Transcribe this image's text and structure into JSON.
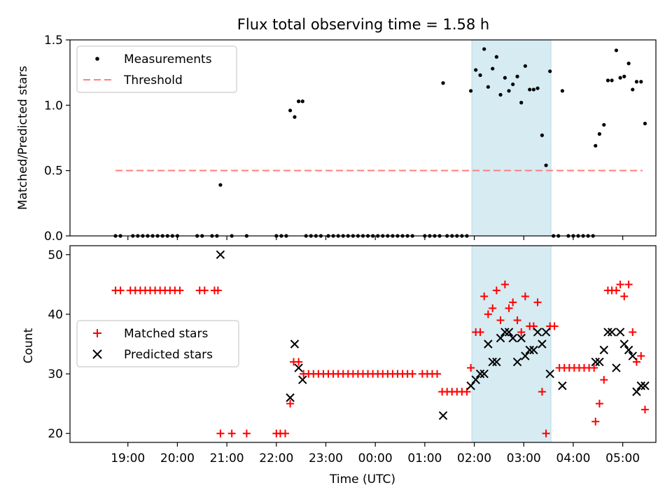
{
  "chart_data": [
    {
      "type": "scatter",
      "title": "Flux total observing time = 1.58 h",
      "xlabel": "",
      "ylabel": "Matched/Predicted stars",
      "ylim": [
        0,
        1.5
      ],
      "yticks": [
        "0.0",
        "0.5",
        "1.0",
        "1.5"
      ],
      "xlim": [
        17.83,
        29.67
      ],
      "shaded_region": [
        25.95,
        27.55
      ],
      "legend": {
        "placement": "top-left",
        "entries": [
          "Measurements",
          "Threshold"
        ]
      },
      "threshold": {
        "name": "Threshold",
        "y": 0.5,
        "x": [
          18.75,
          29.4
        ],
        "color": "#ff7f7f"
      },
      "series": [
        {
          "name": "Measurements",
          "color": "#000000",
          "points": [
            [
              18.75,
              0
            ],
            [
              18.85,
              0
            ],
            [
              19.1,
              0
            ],
            [
              19.2,
              0
            ],
            [
              19.3,
              0
            ],
            [
              19.4,
              0
            ],
            [
              19.5,
              0
            ],
            [
              19.6,
              0
            ],
            [
              19.7,
              0
            ],
            [
              19.8,
              0
            ],
            [
              19.9,
              0
            ],
            [
              20.0,
              0
            ],
            [
              20.4,
              0
            ],
            [
              20.5,
              0
            ],
            [
              20.7,
              0
            ],
            [
              20.8,
              0
            ],
            [
              20.87,
              0.39
            ],
            [
              21.1,
              0
            ],
            [
              21.4,
              0
            ],
            [
              22.0,
              0
            ],
            [
              22.1,
              0
            ],
            [
              22.2,
              0
            ],
            [
              22.28,
              0.96
            ],
            [
              22.37,
              0.91
            ],
            [
              22.45,
              1.03
            ],
            [
              22.53,
              1.03
            ],
            [
              22.6,
              0
            ],
            [
              22.7,
              0
            ],
            [
              22.8,
              0
            ],
            [
              22.9,
              0
            ],
            [
              23.05,
              0
            ],
            [
              23.15,
              0
            ],
            [
              23.25,
              0
            ],
            [
              23.35,
              0
            ],
            [
              23.45,
              0
            ],
            [
              23.55,
              0
            ],
            [
              23.65,
              0
            ],
            [
              23.75,
              0
            ],
            [
              23.85,
              0
            ],
            [
              23.95,
              0
            ],
            [
              24.05,
              0
            ],
            [
              24.15,
              0
            ],
            [
              24.25,
              0
            ],
            [
              24.35,
              0
            ],
            [
              24.45,
              0
            ],
            [
              24.55,
              0
            ],
            [
              24.65,
              0
            ],
            [
              24.75,
              0
            ],
            [
              25.0,
              0
            ],
            [
              25.1,
              0
            ],
            [
              25.2,
              0
            ],
            [
              25.3,
              0
            ],
            [
              25.37,
              1.17
            ],
            [
              25.45,
              0
            ],
            [
              25.55,
              0
            ],
            [
              25.65,
              0
            ],
            [
              25.75,
              0
            ],
            [
              25.85,
              0
            ],
            [
              25.93,
              1.11
            ],
            [
              26.03,
              1.27
            ],
            [
              26.12,
              1.23
            ],
            [
              26.2,
              1.43
            ],
            [
              26.28,
              1.14
            ],
            [
              26.37,
              1.28
            ],
            [
              26.45,
              1.37
            ],
            [
              26.53,
              1.08
            ],
            [
              26.62,
              1.21
            ],
            [
              26.7,
              1.11
            ],
            [
              26.78,
              1.16
            ],
            [
              26.87,
              1.22
            ],
            [
              26.95,
              1.02
            ],
            [
              27.03,
              1.3
            ],
            [
              27.12,
              1.12
            ],
            [
              27.2,
              1.12
            ],
            [
              27.28,
              1.13
            ],
            [
              27.37,
              0.77
            ],
            [
              27.45,
              0.54
            ],
            [
              27.53,
              1.26
            ],
            [
              27.6,
              0
            ],
            [
              27.7,
              0
            ],
            [
              27.78,
              1.11
            ],
            [
              27.9,
              0
            ],
            [
              28.0,
              0
            ],
            [
              28.1,
              0
            ],
            [
              28.2,
              0
            ],
            [
              28.3,
              0
            ],
            [
              28.4,
              0
            ],
            [
              28.45,
              0.69
            ],
            [
              28.53,
              0.78
            ],
            [
              28.62,
              0.85
            ],
            [
              28.7,
              1.19
            ],
            [
              28.78,
              1.19
            ],
            [
              28.87,
              1.42
            ],
            [
              28.95,
              1.21
            ],
            [
              29.03,
              1.22
            ],
            [
              29.12,
              1.32
            ],
            [
              29.2,
              1.12
            ],
            [
              29.28,
              1.18
            ],
            [
              29.37,
              1.18
            ],
            [
              29.45,
              0.86
            ]
          ]
        }
      ]
    },
    {
      "type": "scatter",
      "title": "",
      "xlabel": "Time (UTC)",
      "ylabel": "Count",
      "ylim": [
        18.5,
        51.5
      ],
      "yticks": [
        "20",
        "30",
        "40",
        "50"
      ],
      "xlim": [
        17.83,
        29.67
      ],
      "xticks": [
        "19:00",
        "20:00",
        "21:00",
        "22:00",
        "23:00",
        "00:00",
        "01:00",
        "02:00",
        "03:00",
        "04:00",
        "05:00"
      ],
      "shaded_region": [
        25.95,
        27.55
      ],
      "legend": {
        "placement": "center-left",
        "entries": [
          "Matched stars",
          "Predicted stars"
        ]
      },
      "series": [
        {
          "name": "Matched stars",
          "marker": "plus",
          "color": "#ff0000",
          "points": [
            [
              18.75,
              44
            ],
            [
              18.85,
              44
            ],
            [
              19.05,
              44
            ],
            [
              19.15,
              44
            ],
            [
              19.25,
              44
            ],
            [
              19.35,
              44
            ],
            [
              19.45,
              44
            ],
            [
              19.55,
              44
            ],
            [
              19.65,
              44
            ],
            [
              19.75,
              44
            ],
            [
              19.85,
              44
            ],
            [
              19.95,
              44
            ],
            [
              20.05,
              44
            ],
            [
              20.45,
              44
            ],
            [
              20.55,
              44
            ],
            [
              20.75,
              44
            ],
            [
              20.82,
              44
            ],
            [
              20.87,
              20
            ],
            [
              21.1,
              20
            ],
            [
              21.4,
              20
            ],
            [
              22.0,
              20
            ],
            [
              22.08,
              20
            ],
            [
              22.18,
              20
            ],
            [
              22.28,
              25
            ],
            [
              22.35,
              32
            ],
            [
              22.45,
              32
            ],
            [
              22.55,
              30
            ],
            [
              22.65,
              30
            ],
            [
              22.75,
              30
            ],
            [
              22.85,
              30
            ],
            [
              22.95,
              30
            ],
            [
              23.05,
              30
            ],
            [
              23.15,
              30
            ],
            [
              23.25,
              30
            ],
            [
              23.35,
              30
            ],
            [
              23.45,
              30
            ],
            [
              23.55,
              30
            ],
            [
              23.65,
              30
            ],
            [
              23.75,
              30
            ],
            [
              23.85,
              30
            ],
            [
              23.95,
              30
            ],
            [
              24.05,
              30
            ],
            [
              24.15,
              30
            ],
            [
              24.25,
              30
            ],
            [
              24.35,
              30
            ],
            [
              24.45,
              30
            ],
            [
              24.55,
              30
            ],
            [
              24.65,
              30
            ],
            [
              24.75,
              30
            ],
            [
              24.95,
              30
            ],
            [
              25.05,
              30
            ],
            [
              25.15,
              30
            ],
            [
              25.25,
              30
            ],
            [
              25.35,
              27
            ],
            [
              25.45,
              27
            ],
            [
              25.55,
              27
            ],
            [
              25.65,
              27
            ],
            [
              25.75,
              27
            ],
            [
              25.85,
              27
            ],
            [
              25.93,
              31
            ],
            [
              26.03,
              37
            ],
            [
              26.12,
              37
            ],
            [
              26.2,
              43
            ],
            [
              26.28,
              40
            ],
            [
              26.37,
              41
            ],
            [
              26.45,
              44
            ],
            [
              26.53,
              39
            ],
            [
              26.62,
              45
            ],
            [
              26.7,
              41
            ],
            [
              26.78,
              42
            ],
            [
              26.87,
              39
            ],
            [
              26.95,
              37
            ],
            [
              27.03,
              43
            ],
            [
              27.12,
              38
            ],
            [
              27.2,
              38
            ],
            [
              27.28,
              42
            ],
            [
              27.37,
              27
            ],
            [
              27.45,
              20
            ],
            [
              27.53,
              38
            ],
            [
              27.62,
              38
            ],
            [
              27.72,
              31
            ],
            [
              27.82,
              31
            ],
            [
              27.92,
              31
            ],
            [
              28.02,
              31
            ],
            [
              28.12,
              31
            ],
            [
              28.22,
              31
            ],
            [
              28.32,
              31
            ],
            [
              28.42,
              31
            ],
            [
              28.45,
              22
            ],
            [
              28.53,
              25
            ],
            [
              28.62,
              29
            ],
            [
              28.7,
              44
            ],
            [
              28.78,
              44
            ],
            [
              28.87,
              44
            ],
            [
              28.95,
              45
            ],
            [
              29.03,
              43
            ],
            [
              29.12,
              45
            ],
            [
              29.2,
              37
            ],
            [
              29.28,
              32
            ],
            [
              29.37,
              33
            ],
            [
              29.45,
              24
            ]
          ]
        },
        {
          "name": "Predicted stars",
          "marker": "x",
          "color": "#000000",
          "points": [
            [
              20.87,
              50
            ],
            [
              22.28,
              26
            ],
            [
              22.37,
              35
            ],
            [
              22.45,
              31
            ],
            [
              22.53,
              29
            ],
            [
              25.37,
              23
            ],
            [
              25.93,
              28
            ],
            [
              26.03,
              29
            ],
            [
              26.12,
              30
            ],
            [
              26.2,
              30
            ],
            [
              26.28,
              35
            ],
            [
              26.37,
              32
            ],
            [
              26.45,
              32
            ],
            [
              26.53,
              36
            ],
            [
              26.62,
              37
            ],
            [
              26.7,
              37
            ],
            [
              26.78,
              36
            ],
            [
              26.87,
              32
            ],
            [
              26.95,
              36
            ],
            [
              27.03,
              33
            ],
            [
              27.12,
              34
            ],
            [
              27.2,
              34
            ],
            [
              27.28,
              37
            ],
            [
              27.37,
              35
            ],
            [
              27.45,
              37
            ],
            [
              27.53,
              30
            ],
            [
              27.78,
              28
            ],
            [
              28.45,
              32
            ],
            [
              28.53,
              32
            ],
            [
              28.62,
              34
            ],
            [
              28.7,
              37
            ],
            [
              28.78,
              37
            ],
            [
              28.87,
              31
            ],
            [
              28.95,
              37
            ],
            [
              29.03,
              35
            ],
            [
              29.12,
              34
            ],
            [
              29.2,
              33
            ],
            [
              29.28,
              27
            ],
            [
              29.37,
              28
            ],
            [
              29.45,
              28
            ]
          ]
        }
      ]
    }
  ]
}
